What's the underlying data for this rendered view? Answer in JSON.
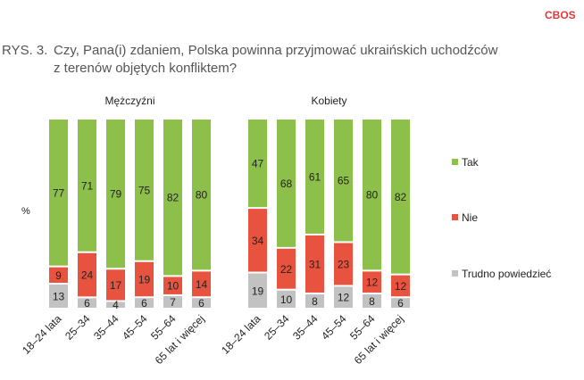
{
  "logo": "CBOS",
  "figure_label": "RYS. 3.",
  "chart_data": {
    "type": "bar",
    "stacked": true,
    "title_lines": [
      "Czy, Pana(i) zdaniem, Polska powinna przyjmować ukraińskich uchodźców",
      "z terenów objętych konfliktem?"
    ],
    "ylabel": "%",
    "categories": [
      "18–24 lata",
      "25–34",
      "35–44",
      "45–54",
      "55–64",
      "65 lat i więcej"
    ],
    "legend": [
      "Tak",
      "Nie",
      "Trudno powiedzieć"
    ],
    "legend_position": "right",
    "colors": {
      "Tak": "#8dbf4b",
      "Nie": "#e8533f",
      "Trudno powiedzieć": "#c2c2c2"
    },
    "panels": [
      {
        "name": "Mężczyźni",
        "series": [
          {
            "name": "Tak",
            "values": [
              77,
              71,
              79,
              75,
              82,
              80
            ]
          },
          {
            "name": "Nie",
            "values": [
              9,
              24,
              17,
              19,
              10,
              14
            ]
          },
          {
            "name": "Trudno powiedzieć",
            "values": [
              13,
              6,
              4,
              6,
              7,
              6
            ]
          }
        ]
      },
      {
        "name": "Kobiety",
        "series": [
          {
            "name": "Tak",
            "values": [
              47,
              68,
              61,
              65,
              80,
              82
            ]
          },
          {
            "name": "Nie",
            "values": [
              34,
              22,
              31,
              23,
              12,
              12
            ]
          },
          {
            "name": "Trudno powiedzieć",
            "values": [
              19,
              10,
              8,
              12,
              8,
              6
            ]
          }
        ]
      }
    ]
  }
}
